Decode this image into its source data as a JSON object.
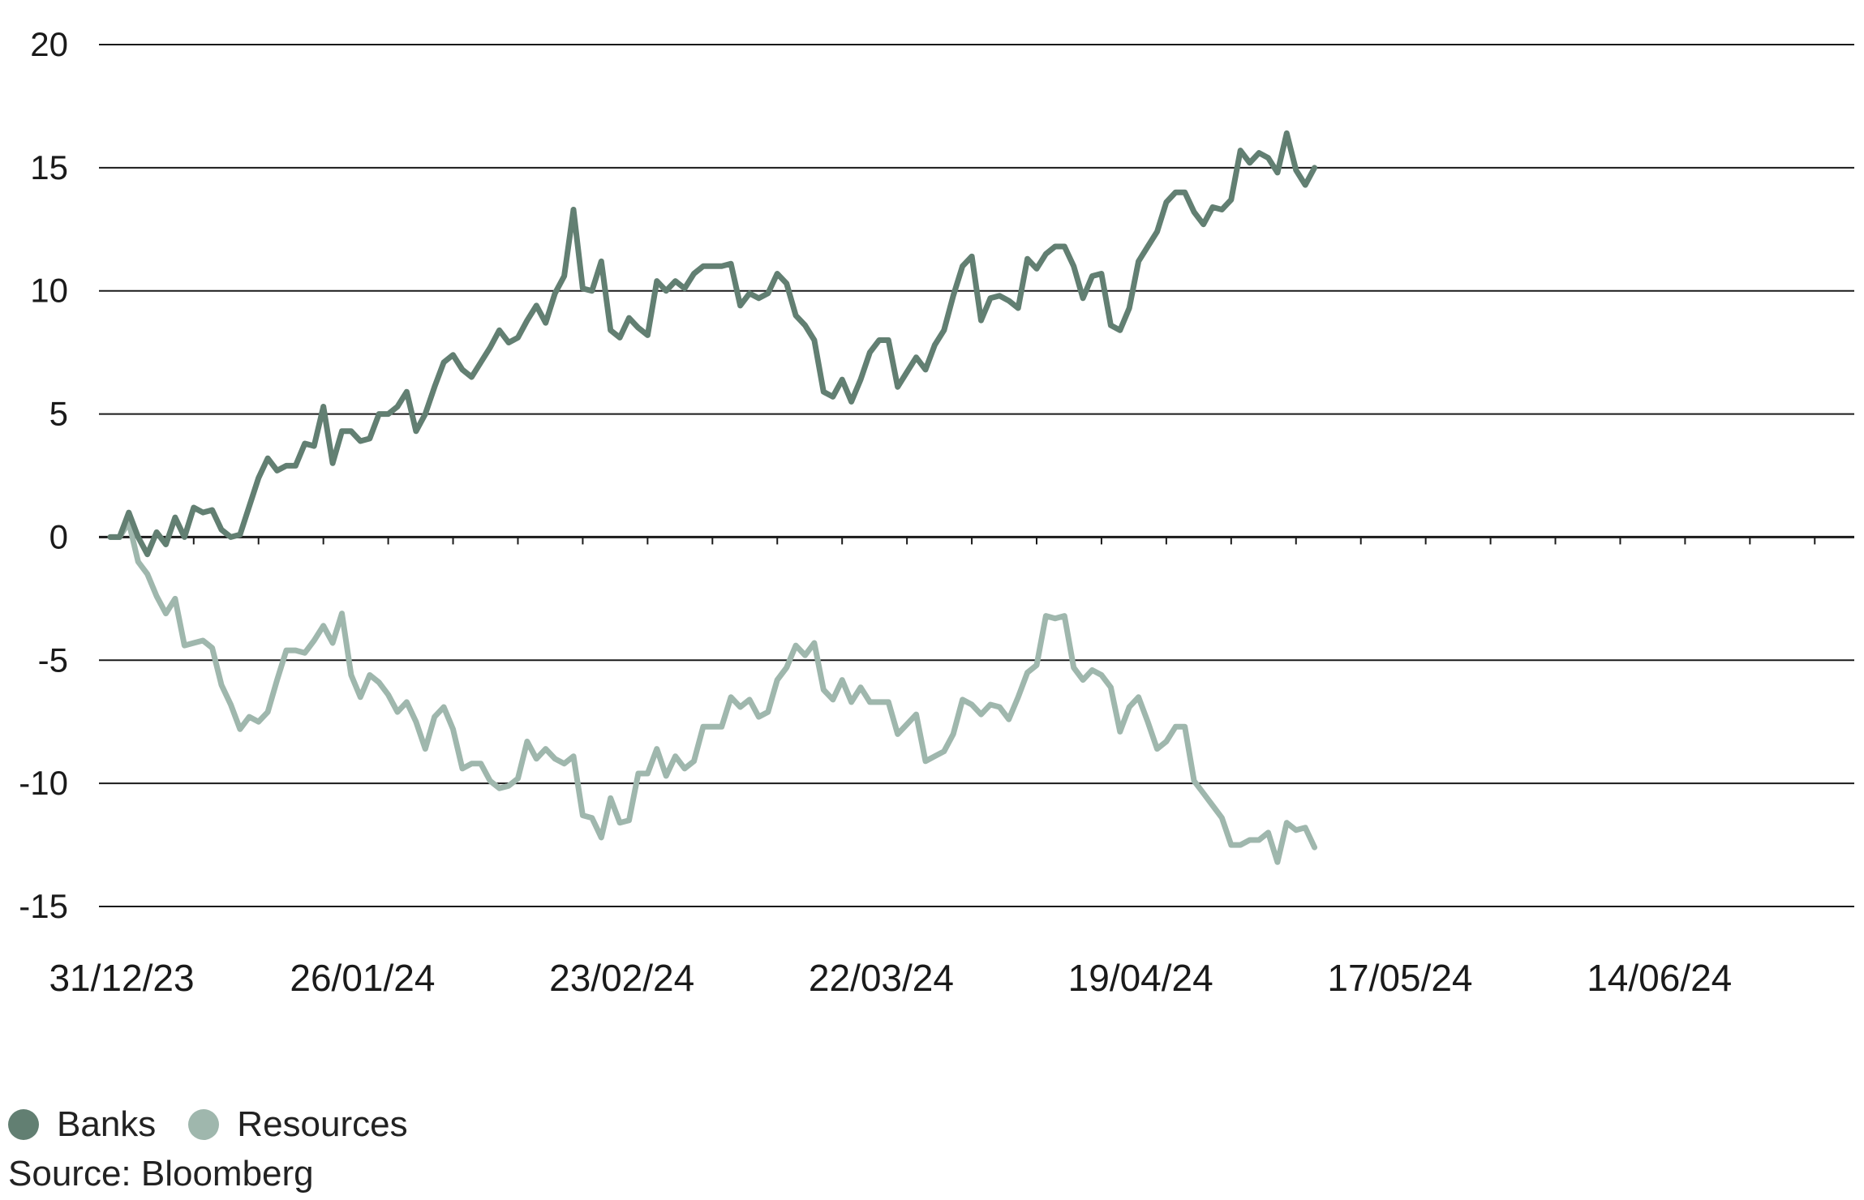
{
  "chart_data": {
    "type": "line",
    "title": "",
    "xlabel": "",
    "ylabel": "",
    "ylim": [
      -15,
      20
    ],
    "yticks": [
      20,
      15,
      10,
      5,
      0,
      -5,
      -10,
      -15
    ],
    "ytick_labels": [
      "20",
      "15",
      "10",
      "5",
      "0",
      "-5",
      "-10",
      "-15"
    ],
    "x_start": "2023-12-31",
    "x_end": "2024-07-05",
    "xticks": [
      "2023-12-31",
      "2024-01-26",
      "2024-02-23",
      "2024-03-22",
      "2024-04-19",
      "2024-05-17",
      "2024-06-14"
    ],
    "xtick_labels": [
      "31/12/23",
      "26/01/24",
      "23/02/24",
      "22/03/24",
      "19/04/24",
      "17/05/24",
      "14/06/24"
    ],
    "grid": "horizontal",
    "legend_position": "bottom-left",
    "series": [
      {
        "name": "Banks",
        "color": "#627f72",
        "points": [
          [
            "2023-12-31",
            0
          ],
          [
            "2024-01-01",
            0
          ],
          [
            "2024-01-02",
            1.0
          ],
          [
            "2024-01-03",
            0
          ],
          [
            "2024-01-04",
            -0.7
          ],
          [
            "2024-01-05",
            0.2
          ],
          [
            "2024-01-06",
            -0.3
          ],
          [
            "2024-01-07",
            0.8
          ],
          [
            "2024-01-08",
            0
          ],
          [
            "2024-01-09",
            1.2
          ],
          [
            "2024-01-10",
            1.0
          ],
          [
            "2024-01-11",
            1.1
          ],
          [
            "2024-01-12",
            0.3
          ],
          [
            "2024-01-13",
            0
          ],
          [
            "2024-01-14",
            0.1
          ],
          [
            "2024-01-16",
            2.4
          ],
          [
            "2024-01-17",
            3.2
          ],
          [
            "2024-01-18",
            2.7
          ],
          [
            "2024-01-19",
            2.9
          ],
          [
            "2024-01-20",
            2.9
          ],
          [
            "2024-01-21",
            3.8
          ],
          [
            "2024-01-22",
            3.7
          ],
          [
            "2024-01-23",
            5.3
          ],
          [
            "2024-01-24",
            3.0
          ],
          [
            "2024-01-25",
            4.3
          ],
          [
            "2024-01-26",
            4.3
          ],
          [
            "2024-01-27",
            3.9
          ],
          [
            "2024-01-28",
            4.0
          ],
          [
            "2024-01-29",
            5.0
          ],
          [
            "2024-01-30",
            5.0
          ],
          [
            "2024-01-31",
            5.3
          ],
          [
            "2024-02-01",
            5.9
          ],
          [
            "2024-02-02",
            4.3
          ],
          [
            "2024-02-03",
            5.0
          ],
          [
            "2024-02-04",
            6.1
          ],
          [
            "2024-02-05",
            7.1
          ],
          [
            "2024-02-06",
            7.4
          ],
          [
            "2024-02-07",
            6.8
          ],
          [
            "2024-02-08",
            6.5
          ],
          [
            "2024-02-09",
            7.1
          ],
          [
            "2024-02-10",
            7.7
          ],
          [
            "2024-02-11",
            8.4
          ],
          [
            "2024-02-12",
            7.9
          ],
          [
            "2024-02-13",
            8.1
          ],
          [
            "2024-02-14",
            8.8
          ],
          [
            "2024-02-15",
            9.4
          ],
          [
            "2024-02-16",
            8.7
          ],
          [
            "2024-02-17",
            9.9
          ],
          [
            "2024-02-18",
            10.6
          ],
          [
            "2024-02-19",
            13.3
          ],
          [
            "2024-02-20",
            10.1
          ],
          [
            "2024-02-21",
            10.0
          ],
          [
            "2024-02-22",
            11.2
          ],
          [
            "2024-02-23",
            8.4
          ],
          [
            "2024-02-24",
            8.1
          ],
          [
            "2024-02-25",
            8.9
          ],
          [
            "2024-02-26",
            8.5
          ],
          [
            "2024-02-27",
            8.2
          ],
          [
            "2024-02-28",
            10.4
          ],
          [
            "2024-02-29",
            10.0
          ],
          [
            "2024-03-01",
            10.4
          ],
          [
            "2024-03-02",
            10.1
          ],
          [
            "2024-03-03",
            10.7
          ],
          [
            "2024-03-04",
            11.0
          ],
          [
            "2024-03-05",
            11.0
          ],
          [
            "2024-03-06",
            11.0
          ],
          [
            "2024-03-07",
            11.1
          ],
          [
            "2024-03-08",
            9.4
          ],
          [
            "2024-03-09",
            9.9
          ],
          [
            "2024-03-10",
            9.7
          ],
          [
            "2024-03-11",
            9.9
          ],
          [
            "2024-03-12",
            10.7
          ],
          [
            "2024-03-13",
            10.3
          ],
          [
            "2024-03-14",
            9.0
          ],
          [
            "2024-03-15",
            8.6
          ],
          [
            "2024-03-16",
            8.0
          ],
          [
            "2024-03-17",
            5.9
          ],
          [
            "2024-03-18",
            5.7
          ],
          [
            "2024-03-19",
            6.4
          ],
          [
            "2024-03-20",
            5.5
          ],
          [
            "2024-03-21",
            6.4
          ],
          [
            "2024-03-22",
            7.5
          ],
          [
            "2024-03-23",
            8.0
          ],
          [
            "2024-03-24",
            8.0
          ],
          [
            "2024-03-25",
            6.1
          ],
          [
            "2024-03-26",
            6.7
          ],
          [
            "2024-03-27",
            7.3
          ],
          [
            "2024-03-28",
            6.8
          ],
          [
            "2024-03-29",
            7.8
          ],
          [
            "2024-03-30",
            8.4
          ],
          [
            "2024-03-31",
            9.8
          ],
          [
            "2024-04-01",
            11.0
          ],
          [
            "2024-04-02",
            11.4
          ],
          [
            "2024-04-03",
            8.8
          ],
          [
            "2024-04-04",
            9.7
          ],
          [
            "2024-04-05",
            9.8
          ],
          [
            "2024-04-06",
            9.6
          ],
          [
            "2024-04-07",
            9.3
          ],
          [
            "2024-04-08",
            11.3
          ],
          [
            "2024-04-09",
            10.9
          ],
          [
            "2024-04-10",
            11.5
          ],
          [
            "2024-04-11",
            11.8
          ],
          [
            "2024-04-12",
            11.8
          ],
          [
            "2024-04-13",
            11.0
          ],
          [
            "2024-04-14",
            9.7
          ],
          [
            "2024-04-15",
            10.6
          ],
          [
            "2024-04-16",
            10.7
          ],
          [
            "2024-04-17",
            8.6
          ],
          [
            "2024-04-18",
            8.4
          ],
          [
            "2024-04-19",
            9.3
          ],
          [
            "2024-04-20",
            11.2
          ],
          [
            "2024-04-21",
            11.8
          ],
          [
            "2024-04-22",
            12.4
          ],
          [
            "2024-04-23",
            13.6
          ],
          [
            "2024-04-24",
            14.0
          ],
          [
            "2024-04-25",
            14.0
          ],
          [
            "2024-04-26",
            13.2
          ],
          [
            "2024-04-27",
            12.7
          ],
          [
            "2024-04-28",
            13.4
          ],
          [
            "2024-04-29",
            13.3
          ],
          [
            "2024-04-30",
            13.7
          ],
          [
            "2024-05-01",
            15.7
          ],
          [
            "2024-05-02",
            15.2
          ],
          [
            "2024-05-03",
            15.6
          ],
          [
            "2024-05-04",
            15.4
          ],
          [
            "2024-05-05",
            14.8
          ],
          [
            "2024-05-06",
            16.4
          ],
          [
            "2024-05-07",
            14.9
          ],
          [
            "2024-05-08",
            14.3
          ],
          [
            "2024-05-09",
            15.0
          ]
        ]
      },
      {
        "name": "Resources",
        "color": "#9fb7ad",
        "points": [
          [
            "2023-12-31",
            0
          ],
          [
            "2024-01-01",
            0
          ],
          [
            "2024-01-02",
            0.6
          ],
          [
            "2024-01-03",
            -1.0
          ],
          [
            "2024-01-04",
            -1.5
          ],
          [
            "2024-01-05",
            -2.4
          ],
          [
            "2024-01-06",
            -3.1
          ],
          [
            "2024-01-07",
            -2.5
          ],
          [
            "2024-01-08",
            -4.4
          ],
          [
            "2024-01-09",
            -4.3
          ],
          [
            "2024-01-10",
            -4.2
          ],
          [
            "2024-01-11",
            -4.5
          ],
          [
            "2024-01-12",
            -6.0
          ],
          [
            "2024-01-13",
            -6.8
          ],
          [
            "2024-01-14",
            -7.8
          ],
          [
            "2024-01-15",
            -7.3
          ],
          [
            "2024-01-16",
            -7.5
          ],
          [
            "2024-01-17",
            -7.1
          ],
          [
            "2024-01-18",
            -5.8
          ],
          [
            "2024-01-19",
            -4.6
          ],
          [
            "2024-01-20",
            -4.6
          ],
          [
            "2024-01-21",
            -4.7
          ],
          [
            "2024-01-22",
            -4.2
          ],
          [
            "2024-01-23",
            -3.6
          ],
          [
            "2024-01-24",
            -4.3
          ],
          [
            "2024-01-25",
            -3.1
          ],
          [
            "2024-01-26",
            -5.6
          ],
          [
            "2024-01-27",
            -6.5
          ],
          [
            "2024-01-28",
            -5.6
          ],
          [
            "2024-01-29",
            -5.9
          ],
          [
            "2024-01-30",
            -6.4
          ],
          [
            "2024-01-31",
            -7.1
          ],
          [
            "2024-02-01",
            -6.7
          ],
          [
            "2024-02-02",
            -7.5
          ],
          [
            "2024-02-03",
            -8.6
          ],
          [
            "2024-02-04",
            -7.3
          ],
          [
            "2024-02-05",
            -6.9
          ],
          [
            "2024-02-06",
            -7.8
          ],
          [
            "2024-02-07",
            -9.4
          ],
          [
            "2024-02-08",
            -9.2
          ],
          [
            "2024-02-09",
            -9.2
          ],
          [
            "2024-02-10",
            -9.9
          ],
          [
            "2024-02-11",
            -10.2
          ],
          [
            "2024-02-12",
            -10.1
          ],
          [
            "2024-02-13",
            -9.8
          ],
          [
            "2024-02-14",
            -8.3
          ],
          [
            "2024-02-15",
            -9.0
          ],
          [
            "2024-02-16",
            -8.6
          ],
          [
            "2024-02-17",
            -9.0
          ],
          [
            "2024-02-18",
            -9.2
          ],
          [
            "2024-02-19",
            -8.9
          ],
          [
            "2024-02-20",
            -11.3
          ],
          [
            "2024-02-21",
            -11.4
          ],
          [
            "2024-02-22",
            -12.2
          ],
          [
            "2024-02-23",
            -10.6
          ],
          [
            "2024-02-24",
            -11.6
          ],
          [
            "2024-02-25",
            -11.5
          ],
          [
            "2024-02-26",
            -9.6
          ],
          [
            "2024-02-27",
            -9.6
          ],
          [
            "2024-02-28",
            -8.6
          ],
          [
            "2024-02-29",
            -9.7
          ],
          [
            "2024-03-01",
            -8.9
          ],
          [
            "2024-03-02",
            -9.4
          ],
          [
            "2024-03-03",
            -9.1
          ],
          [
            "2024-03-04",
            -7.7
          ],
          [
            "2024-03-05",
            -7.7
          ],
          [
            "2024-03-06",
            -7.7
          ],
          [
            "2024-03-07",
            -6.5
          ],
          [
            "2024-03-08",
            -6.9
          ],
          [
            "2024-03-09",
            -6.6
          ],
          [
            "2024-03-10",
            -7.3
          ],
          [
            "2024-03-11",
            -7.1
          ],
          [
            "2024-03-12",
            -5.8
          ],
          [
            "2024-03-13",
            -5.3
          ],
          [
            "2024-03-14",
            -4.4
          ],
          [
            "2024-03-15",
            -4.8
          ],
          [
            "2024-03-16",
            -4.3
          ],
          [
            "2024-03-17",
            -6.2
          ],
          [
            "2024-03-18",
            -6.6
          ],
          [
            "2024-03-19",
            -5.8
          ],
          [
            "2024-03-20",
            -6.7
          ],
          [
            "2024-03-21",
            -6.1
          ],
          [
            "2024-03-22",
            -6.7
          ],
          [
            "2024-03-23",
            -6.7
          ],
          [
            "2024-03-24",
            -6.7
          ],
          [
            "2024-03-25",
            -8.0
          ],
          [
            "2024-03-26",
            -7.6
          ],
          [
            "2024-03-27",
            -7.2
          ],
          [
            "2024-03-28",
            -9.1
          ],
          [
            "2024-03-29",
            -8.9
          ],
          [
            "2024-03-30",
            -8.7
          ],
          [
            "2024-03-31",
            -8.0
          ],
          [
            "2024-04-01",
            -6.6
          ],
          [
            "2024-04-02",
            -6.8
          ],
          [
            "2024-04-03",
            -7.2
          ],
          [
            "2024-04-04",
            -6.8
          ],
          [
            "2024-04-05",
            -6.9
          ],
          [
            "2024-04-06",
            -7.4
          ],
          [
            "2024-04-07",
            -6.5
          ],
          [
            "2024-04-08",
            -5.5
          ],
          [
            "2024-04-09",
            -5.2
          ],
          [
            "2024-04-10",
            -3.2
          ],
          [
            "2024-04-11",
            -3.3
          ],
          [
            "2024-04-12",
            -3.2
          ],
          [
            "2024-04-13",
            -5.3
          ],
          [
            "2024-04-14",
            -5.8
          ],
          [
            "2024-04-15",
            -5.4
          ],
          [
            "2024-04-16",
            -5.6
          ],
          [
            "2024-04-17",
            -6.1
          ],
          [
            "2024-04-18",
            -7.9
          ],
          [
            "2024-04-19",
            -6.9
          ],
          [
            "2024-04-20",
            -6.5
          ],
          [
            "2024-04-21",
            -7.5
          ],
          [
            "2024-04-22",
            -8.6
          ],
          [
            "2024-04-23",
            -8.3
          ],
          [
            "2024-04-24",
            -7.7
          ],
          [
            "2024-04-25",
            -7.7
          ],
          [
            "2024-04-26",
            -9.9
          ],
          [
            "2024-04-27",
            -10.4
          ],
          [
            "2024-04-28",
            -10.9
          ],
          [
            "2024-04-29",
            -11.4
          ],
          [
            "2024-04-30",
            -12.5
          ],
          [
            "2024-05-01",
            -12.5
          ],
          [
            "2024-05-02",
            -12.3
          ],
          [
            "2024-05-03",
            -12.3
          ],
          [
            "2024-05-04",
            -12.0
          ],
          [
            "2024-05-05",
            -13.2
          ],
          [
            "2024-05-06",
            -11.6
          ],
          [
            "2024-05-07",
            -11.9
          ],
          [
            "2024-05-08",
            -11.8
          ],
          [
            "2024-05-09",
            -12.6
          ]
        ]
      }
    ]
  },
  "footer": {
    "source": "Source: Bloomberg"
  }
}
